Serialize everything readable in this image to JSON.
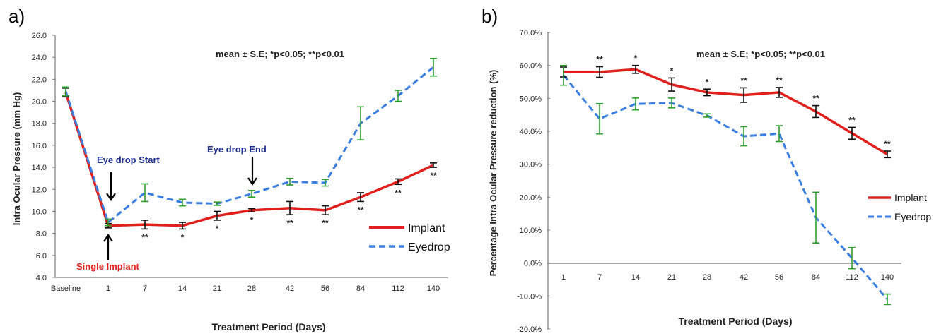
{
  "colors": {
    "implant": "#e0201c",
    "eyedrop": "#3b7fe0",
    "error_implant": "#111111",
    "error_eyedrop": "#2ea02e",
    "annotation_blue": "#1f2f8f",
    "annotation_red": "#e0201c"
  },
  "chart_data": [
    {
      "panel_label": "a)",
      "type": "line",
      "xlabel": "Treatment Period (Days)",
      "ylabel": "Intra Ocular Pressure (mm Hg)",
      "categories": [
        "Baseline",
        "1",
        "7",
        "14",
        "21",
        "28",
        "42",
        "56",
        "84",
        "112",
        "140"
      ],
      "ylim": [
        4.0,
        26.0
      ],
      "yticks": [
        "4.0",
        "6.0",
        "8.0",
        "10.0",
        "12.0",
        "14.0",
        "16.0",
        "18.0",
        "20.0",
        "22.0",
        "24.0",
        "26.0"
      ],
      "grid": false,
      "legend_position": "lower-right",
      "stats_note": "mean ± S.E; *p<0.05; **p<0.01",
      "series": [
        {
          "name": "Implant",
          "style": "solid",
          "values": [
            20.8,
            8.7,
            8.8,
            8.7,
            9.6,
            10.1,
            10.3,
            10.1,
            11.3,
            12.7,
            14.2
          ],
          "errors": [
            0.4,
            0.2,
            0.4,
            0.3,
            0.4,
            0.15,
            0.6,
            0.4,
            0.4,
            0.25,
            0.2
          ]
        },
        {
          "name": "Eyedrop",
          "style": "dashed",
          "values": [
            20.9,
            9.0,
            11.7,
            10.8,
            10.7,
            11.6,
            12.7,
            12.6,
            18.0,
            20.5,
            23.1
          ],
          "errors": [
            0.4,
            0.3,
            0.8,
            0.3,
            0.15,
            0.3,
            0.3,
            0.3,
            1.5,
            0.5,
            0.8
          ]
        }
      ],
      "significance": [
        "",
        "",
        "**",
        "*",
        "*",
        "*",
        "**",
        "**",
        "**",
        "**",
        "**"
      ],
      "annotations": [
        {
          "text": "Eye drop Start",
          "category": "1"
        },
        {
          "text": "Eye drop End",
          "category": "28"
        },
        {
          "text": "Single Implant",
          "category": "1"
        }
      ]
    },
    {
      "panel_label": "b)",
      "type": "line",
      "xlabel": "Treatment Period  (Days)",
      "ylabel": "Percentage Intra Ocular Pressure reduction (%)",
      "categories": [
        "1",
        "7",
        "14",
        "21",
        "28",
        "42",
        "56",
        "84",
        "112",
        "140"
      ],
      "ylim": [
        -20.0,
        70.0
      ],
      "yticks": [
        "-20.0%",
        "-10.0%",
        "0.0%",
        "10.0%",
        "20.0%",
        "30.0%",
        "40.0%",
        "50.0%",
        "60.0%",
        "70.0%"
      ],
      "grid": false,
      "legend_position": "right",
      "stats_note": "mean ± S.E; *p<0.05; **p<0.01",
      "series": [
        {
          "name": "Implant",
          "style": "solid",
          "values": [
            58.0,
            58.0,
            58.8,
            54.2,
            51.8,
            51.0,
            51.8,
            46.0,
            39.4,
            33.0
          ],
          "errors": [
            1.5,
            1.6,
            1.2,
            2.0,
            1.0,
            2.2,
            1.5,
            1.8,
            1.8,
            1.0
          ]
        },
        {
          "name": "Eyedrop",
          "style": "dashed",
          "values": [
            57.0,
            43.8,
            48.3,
            48.6,
            44.8,
            38.5,
            39.3,
            13.8,
            1.5,
            -11.0
          ],
          "errors": [
            3.0,
            4.6,
            1.8,
            1.5,
            0.5,
            2.9,
            2.4,
            7.7,
            3.2,
            1.6
          ]
        }
      ],
      "significance": [
        "",
        "**",
        "*",
        "*",
        "*",
        "**",
        "**",
        "**",
        "**",
        "**"
      ]
    }
  ]
}
